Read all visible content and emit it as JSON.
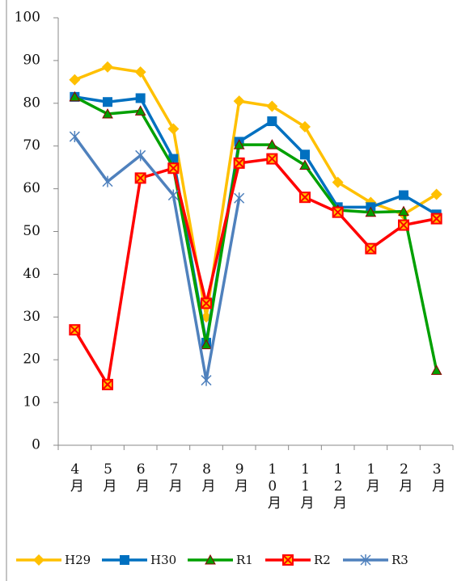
{
  "chart_data": {
    "type": "line",
    "categories": [
      "4月",
      "5月",
      "6月",
      "7月",
      "8月",
      "9月",
      "10月",
      "11月",
      "12月",
      "1月",
      "2月",
      "3月"
    ],
    "ylim": [
      0,
      100
    ],
    "yticks": [
      0,
      10,
      20,
      30,
      40,
      50,
      60,
      70,
      80,
      90,
      100
    ],
    "series": [
      {
        "name": "H29",
        "color": "#ffc000",
        "marker": "diamond",
        "values": [
          85.5,
          88.5,
          87.3,
          74,
          30,
          80.5,
          79.3,
          74.5,
          61.5,
          56.8,
          54,
          58.7
        ]
      },
      {
        "name": "H30",
        "color": "#0070c0",
        "marker": "square",
        "values": [
          81.5,
          80.3,
          81.2,
          67,
          24,
          71,
          75.8,
          68,
          55.7,
          55.7,
          58.5,
          54
        ]
      },
      {
        "name": "R1",
        "color": "#00a000",
        "marker": "triangle",
        "values": [
          81.5,
          77.5,
          78.2,
          65,
          23.5,
          70.3,
          70.3,
          65.5,
          55,
          54.5,
          54.7,
          17.5
        ]
      },
      {
        "name": "R2",
        "color": "#ff0000",
        "marker": "xsquare",
        "values": [
          27,
          14.2,
          62.5,
          64.8,
          33.2,
          66,
          67,
          58,
          54.5,
          46,
          51.5,
          53
        ]
      },
      {
        "name": "R3",
        "color": "#4f81bd",
        "marker": "star",
        "values": [
          72.2,
          61.7,
          67.8,
          58.5,
          15.2,
          57.8,
          null,
          null,
          null,
          null,
          null,
          null
        ]
      }
    ]
  }
}
